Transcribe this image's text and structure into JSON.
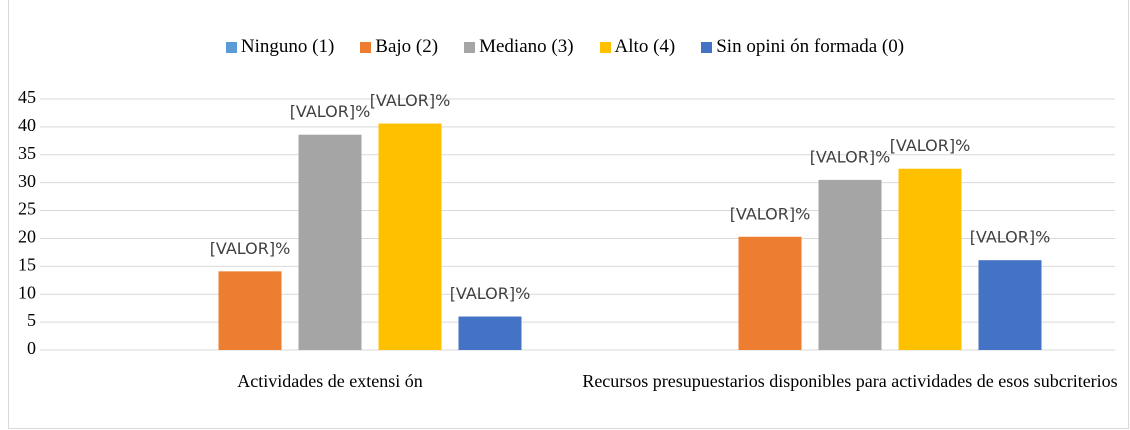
{
  "chart_data": {
    "type": "bar",
    "categories": [
      "Actividades de extensi ón",
      "Recursos presupuestarios disponibles para actividades de esos subcriterios"
    ],
    "series": [
      {
        "name": "Ninguno (1)",
        "color": "#5b9bd5",
        "values": [
          0,
          0
        ]
      },
      {
        "name": "Bajo (2)",
        "color": "#ed7d31",
        "values": [
          14.1,
          20.3
        ],
        "value_labels": [
          "[VALOR]%",
          "[VALOR]%"
        ]
      },
      {
        "name": "Mediano (3)",
        "color": "#a5a5a5",
        "values": [
          38.6,
          30.5
        ],
        "value_labels": [
          "[VALOR]%",
          "[VALOR]%"
        ]
      },
      {
        "name": "Alto (4)",
        "color": "#ffc000",
        "values": [
          40.6,
          32.5
        ],
        "value_labels": [
          "[VALOR]%",
          "[VALOR]%"
        ]
      },
      {
        "name": "Sin opini ón formada (0)",
        "color": "#4472c4",
        "values": [
          6,
          16.1
        ],
        "value_labels": [
          "[VALOR]%",
          "[VALOR]%"
        ]
      }
    ],
    "ylim": [
      0,
      45
    ],
    "yticks": [
      0,
      5,
      10,
      15,
      20,
      25,
      30,
      35,
      40,
      45
    ],
    "grid": true,
    "legend": "top"
  }
}
